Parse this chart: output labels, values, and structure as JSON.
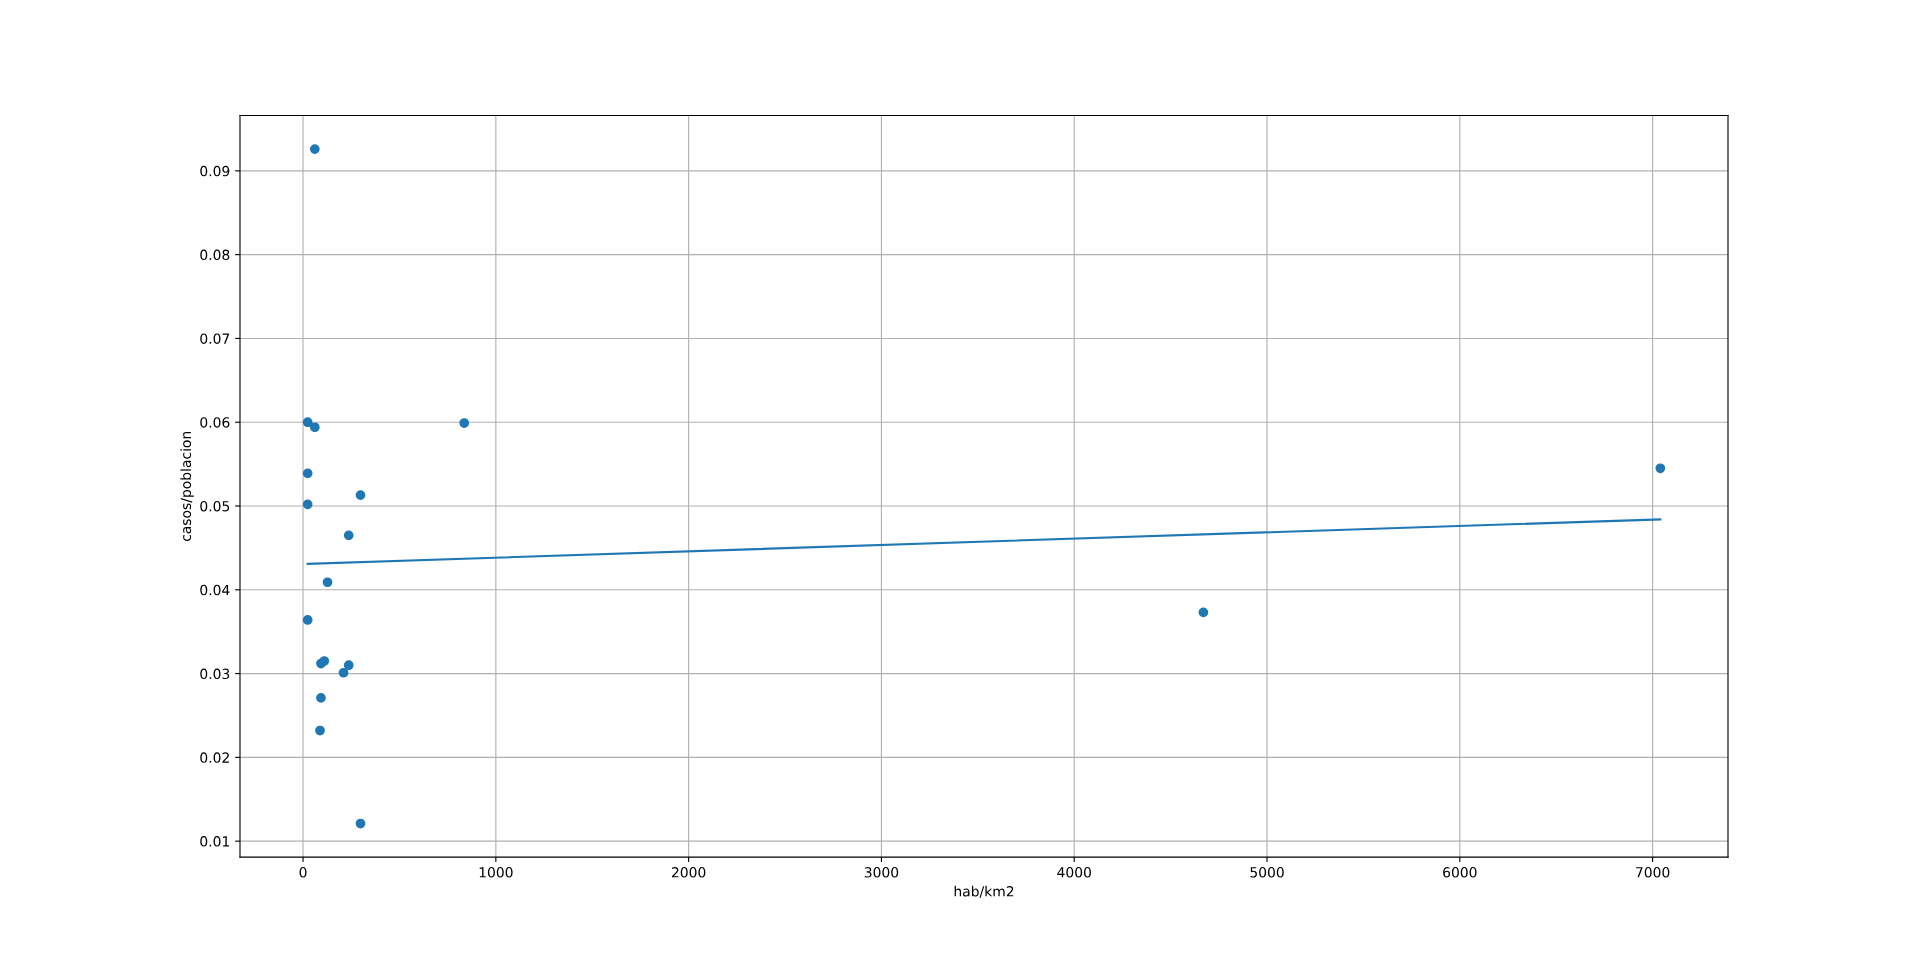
{
  "chart_data": {
    "type": "scatter",
    "xlabel": "hab/km2",
    "ylabel": "casos/poblacion",
    "xlim": [
      -327,
      7391
    ],
    "xticks": [
      0,
      1000,
      2000,
      3000,
      4000,
      5000,
      6000,
      7000
    ],
    "ylim": [
      0.0081,
      0.0966
    ],
    "yticks": [
      0.01,
      0.02,
      0.03,
      0.04,
      0.05,
      0.06,
      0.07,
      0.08,
      0.09
    ],
    "grid": true,
    "series": [
      {
        "marker": "circle",
        "color": "#1f77b4",
        "x": [
          61,
          24,
          61,
          836,
          24,
          298,
          24,
          237,
          127,
          24,
          93,
          110,
          237,
          210,
          93,
          88,
          298,
          4670,
          7040
        ],
        "values": [
          0.0926,
          0.06,
          0.0594,
          0.0599,
          0.0539,
          0.0513,
          0.0502,
          0.0465,
          0.0409,
          0.0364,
          0.0312,
          0.0315,
          0.031,
          0.0301,
          0.0271,
          0.0232,
          0.0121,
          0.0373,
          0.0545
        ]
      },
      {
        "type": "line",
        "color": "#1f77b4",
        "x": [
          24,
          7040
        ],
        "values": [
          0.0431,
          0.0484
        ]
      }
    ]
  }
}
